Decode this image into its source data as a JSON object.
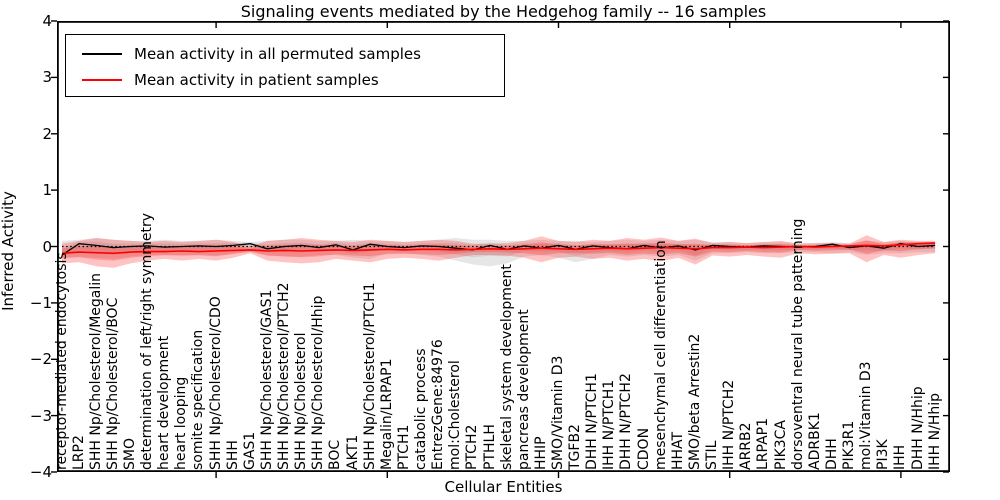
{
  "title": "Signaling events mediated by the Hedgehog family -- 16 samples",
  "legend": [
    {
      "label": "Mean activity in all permuted samples",
      "color": "#000000"
    },
    {
      "label": "Mean activity in patient samples",
      "color": "#ff0000"
    }
  ],
  "chart_data": {
    "type": "line",
    "title": "Signaling events mediated by the Hedgehog family -- 16 samples",
    "xlabel": "Cellular Entities",
    "ylabel": "Inferred Activity",
    "ylim": [
      -4,
      4
    ],
    "yticks": [
      4,
      3,
      2,
      1,
      0,
      -1,
      -2,
      -3,
      -4
    ],
    "xtick_every": 10,
    "xtick_start_index": 9,
    "grid": false,
    "legend_position": "upper left",
    "zero_line": "dotted",
    "categories": [
      "receptor-mediated endocytosis",
      "LRP2",
      "SHH Np/Cholesterol/Megalin",
      "SHH Np/Cholesterol/BOC",
      "SMO",
      "determination of left/right symmetry",
      "heart development",
      "heart looping",
      "somite specification",
      "SHH Np/Cholesterol/CDO",
      "SHH",
      "GAS1",
      "SHH Np/Cholesterol/GAS1",
      "SHH Np/Cholesterol/PTCH2",
      "SHH Np/Cholesterol",
      "SHH Np/Cholesterol/Hhip",
      "BOC",
      "AKT1",
      "SHH Np/Cholesterol/PTCH1",
      "Megalin/LRPAP1",
      "PTCH1",
      "catabolic process",
      "EntrezGene:84976",
      "mol:Cholesterol",
      "PTCH2",
      "PTHLH",
      "skeletal system development",
      "pancreas development",
      "HHIP",
      "SMO/Vitamin D3",
      "TGFB2",
      "DHH N/PTCH1",
      "IHH N/PTCH1",
      "DHH N/PTCH2",
      "CDON",
      "mesenchymal cell differentiation",
      "HHAT",
      "SMO/beta Arrestin2",
      "STIL",
      "IHH N/PTCH2",
      "ARRB2",
      "LRPAP1",
      "PIK3CA",
      "dorsoventral neural tube patterning",
      "ADRBK1",
      "DHH",
      "PIK3R1",
      "mol:Vitamin D3",
      "PI3K",
      "IHH",
      "DHH N/Hhip",
      "IHH N/Hhip"
    ],
    "series": [
      {
        "name": "Mean activity in all permuted samples",
        "color": "#000000",
        "values": [
          -0.15,
          0.05,
          0.02,
          -0.02,
          0.0,
          0.01,
          -0.01,
          0.0,
          0.01,
          0.0,
          0.02,
          0.05,
          -0.04,
          0.0,
          0.02,
          -0.02,
          0.03,
          -0.06,
          0.04,
          0.0,
          -0.02,
          0.01,
          0.0,
          -0.03,
          -0.06,
          0.02,
          -0.05,
          0.01,
          -0.03,
          0.02,
          -0.05,
          0.01,
          -0.02,
          -0.04,
          0.02,
          -0.03,
          0.01,
          -0.06,
          0.02,
          0.0,
          -0.01,
          0.01,
          0.0,
          -0.01,
          0.0,
          0.04,
          -0.02,
          0.01,
          -0.03,
          0.05,
          0.0,
          0.02
        ]
      },
      {
        "name": "Mean activity in patient samples",
        "color": "#ff0000",
        "values": [
          -0.12,
          -0.1,
          -0.11,
          -0.12,
          -0.1,
          -0.09,
          -0.09,
          -0.08,
          -0.09,
          -0.08,
          -0.07,
          -0.06,
          -0.08,
          -0.07,
          -0.08,
          -0.07,
          -0.06,
          -0.07,
          -0.06,
          -0.05,
          -0.06,
          -0.05,
          -0.05,
          -0.06,
          -0.05,
          -0.04,
          -0.05,
          -0.04,
          -0.03,
          -0.04,
          -0.05,
          -0.04,
          -0.03,
          -0.04,
          -0.03,
          -0.02,
          -0.03,
          -0.04,
          -0.02,
          -0.02,
          -0.01,
          -0.02,
          -0.01,
          0.0,
          -0.01,
          0.0,
          0.01,
          0.02,
          0.01,
          0.03,
          0.05,
          0.06
        ]
      }
    ],
    "bands": [
      {
        "name": "permuted-std-band",
        "series": 0,
        "color": "rgba(130,130,130,0.20)",
        "upper": [
          0.1,
          0.12,
          0.15,
          0.12,
          0.1,
          0.1,
          0.12,
          0.1,
          0.1,
          0.12,
          0.1,
          0.08,
          0.1,
          0.12,
          0.12,
          0.1,
          0.1,
          0.12,
          0.1,
          0.1,
          0.08,
          0.1,
          0.12,
          0.15,
          0.12,
          0.12,
          0.1,
          0.1,
          0.12,
          0.1,
          0.1,
          0.08,
          0.1,
          0.12,
          0.1,
          0.12,
          0.1,
          0.12,
          0.08,
          0.08,
          0.06,
          0.08,
          0.08,
          0.06,
          0.06,
          0.08,
          0.06,
          0.1,
          0.08,
          0.1,
          0.08,
          0.08
        ],
        "lower": [
          -0.2,
          -0.18,
          -0.2,
          -0.22,
          -0.18,
          -0.15,
          -0.15,
          -0.15,
          -0.15,
          -0.18,
          -0.12,
          -0.1,
          -0.15,
          -0.18,
          -0.18,
          -0.15,
          -0.15,
          -0.2,
          -0.22,
          -0.12,
          -0.12,
          -0.15,
          -0.18,
          -0.25,
          -0.32,
          -0.35,
          -0.3,
          -0.18,
          -0.15,
          -0.2,
          -0.28,
          -0.22,
          -0.15,
          -0.18,
          -0.15,
          -0.18,
          -0.15,
          -0.25,
          -0.12,
          -0.12,
          -0.1,
          -0.12,
          -0.12,
          -0.1,
          -0.1,
          -0.12,
          -0.1,
          -0.15,
          -0.12,
          -0.12,
          -0.1,
          -0.1
        ]
      },
      {
        "name": "patient-std-band",
        "series": 1,
        "color": "rgba(255,40,40,0.28)",
        "upper": [
          0.05,
          0.1,
          0.15,
          0.12,
          0.1,
          0.08,
          0.1,
          0.08,
          0.1,
          0.12,
          0.08,
          0.0,
          0.1,
          0.12,
          0.15,
          0.12,
          0.1,
          0.08,
          0.12,
          0.1,
          0.08,
          0.1,
          0.12,
          0.1,
          0.05,
          0.05,
          0.06,
          0.1,
          0.18,
          0.1,
          0.08,
          0.12,
          0.1,
          0.15,
          0.12,
          0.16,
          0.1,
          0.14,
          0.06,
          0.08,
          0.06,
          0.08,
          0.1,
          0.05,
          0.06,
          0.06,
          0.05,
          0.2,
          0.08,
          0.12,
          0.1,
          0.1
        ],
        "lower": [
          -0.3,
          -0.28,
          -0.35,
          -0.38,
          -0.3,
          -0.25,
          -0.22,
          -0.25,
          -0.22,
          -0.25,
          -0.2,
          -0.12,
          -0.25,
          -0.28,
          -0.3,
          -0.28,
          -0.22,
          -0.25,
          -0.28,
          -0.22,
          -0.2,
          -0.22,
          -0.25,
          -0.2,
          -0.15,
          -0.15,
          -0.16,
          -0.2,
          -0.28,
          -0.2,
          -0.18,
          -0.22,
          -0.2,
          -0.25,
          -0.22,
          -0.26,
          -0.2,
          -0.32,
          -0.16,
          -0.18,
          -0.15,
          -0.18,
          -0.2,
          -0.12,
          -0.14,
          -0.13,
          -0.12,
          -0.28,
          -0.15,
          -0.2,
          -0.15,
          -0.12
        ]
      }
    ]
  }
}
